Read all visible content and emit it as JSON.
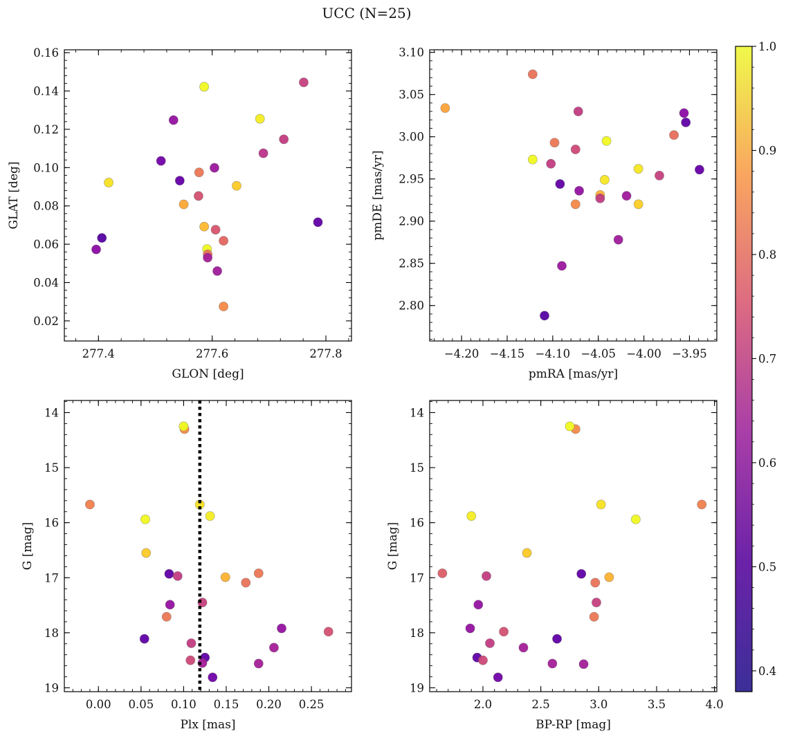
{
  "figure_title": "UCC (N=25)",
  "colorbar": {
    "ticks": [
      "0.4",
      "0.5",
      "0.6",
      "0.7",
      "0.8",
      "0.9",
      "1.0"
    ],
    "range": [
      0.38,
      1.0
    ],
    "colormap": "plasma"
  },
  "chart_data": [
    {
      "type": "scatter",
      "xlabel": "GLON [deg]",
      "ylabel": "GLAT [deg]",
      "xlim": [
        277.34,
        277.845
      ],
      "ylim": [
        0.0095,
        0.1615
      ],
      "xticks": [
        277.4,
        277.6,
        277.8
      ],
      "xtick_labels": [
        "277.4",
        "277.6",
        "277.8"
      ],
      "yticks": [
        0.02,
        0.04,
        0.06,
        0.08,
        0.1,
        0.12,
        0.14,
        0.16
      ],
      "ytick_labels": [
        "0.02",
        "0.04",
        "0.06",
        "0.08",
        "0.10",
        "0.12",
        "0.14",
        "0.16"
      ],
      "points": [
        {
          "x": 277.586,
          "y": 0.1422,
          "c": 1.0
        },
        {
          "x": 277.761,
          "y": 0.1445,
          "c": 0.63
        },
        {
          "x": 277.532,
          "y": 0.1248,
          "c": 0.52
        },
        {
          "x": 277.684,
          "y": 0.1255,
          "c": 0.98
        },
        {
          "x": 277.726,
          "y": 0.1148,
          "c": 0.62
        },
        {
          "x": 277.69,
          "y": 0.1075,
          "c": 0.6
        },
        {
          "x": 277.51,
          "y": 0.1035,
          "c": 0.45
        },
        {
          "x": 277.604,
          "y": 0.0999,
          "c": 0.53
        },
        {
          "x": 277.577,
          "y": 0.0975,
          "c": 0.76
        },
        {
          "x": 277.418,
          "y": 0.0922,
          "c": 0.96
        },
        {
          "x": 277.543,
          "y": 0.0932,
          "c": 0.43
        },
        {
          "x": 277.643,
          "y": 0.0905,
          "c": 0.92
        },
        {
          "x": 277.576,
          "y": 0.0852,
          "c": 0.67
        },
        {
          "x": 277.55,
          "y": 0.0808,
          "c": 0.86
        },
        {
          "x": 277.586,
          "y": 0.0692,
          "c": 0.89
        },
        {
          "x": 277.606,
          "y": 0.0676,
          "c": 0.68
        },
        {
          "x": 277.786,
          "y": 0.0715,
          "c": 0.42
        },
        {
          "x": 277.406,
          "y": 0.0633,
          "c": 0.4
        },
        {
          "x": 277.62,
          "y": 0.0618,
          "c": 0.72
        },
        {
          "x": 277.396,
          "y": 0.0573,
          "c": 0.5
        },
        {
          "x": 277.591,
          "y": 0.0575,
          "c": 1.0
        },
        {
          "x": 277.592,
          "y": 0.0547,
          "c": 0.75
        },
        {
          "x": 277.592,
          "y": 0.053,
          "c": 0.55
        },
        {
          "x": 277.609,
          "y": 0.046,
          "c": 0.54
        },
        {
          "x": 277.62,
          "y": 0.0275,
          "c": 0.8
        }
      ]
    },
    {
      "type": "scatter",
      "xlabel": "pmRA [mas/yr]",
      "ylabel": "pmDE [mas/yr]",
      "xlim": [
        -4.235,
        -3.92
      ],
      "ylim": [
        2.758,
        3.103
      ],
      "xticks": [
        -4.2,
        -4.15,
        -4.1,
        -4.05,
        -4.0,
        -3.95
      ],
      "xtick_labels": [
        "−4.20",
        "−4.15",
        "−4.10",
        "−4.05",
        "−4.00",
        "−3.95"
      ],
      "yticks": [
        2.8,
        2.85,
        2.9,
        2.95,
        3.0,
        3.05,
        3.1
      ],
      "ytick_labels": [
        "2.80",
        "2.85",
        "2.90",
        "2.95",
        "3.00",
        "3.05",
        "3.10"
      ],
      "points": [
        {
          "x": -4.122,
          "y": 3.074,
          "c": 0.75
        },
        {
          "x": -4.218,
          "y": 3.034,
          "c": 0.85
        },
        {
          "x": -4.072,
          "y": 3.03,
          "c": 0.62
        },
        {
          "x": -3.956,
          "y": 3.028,
          "c": 0.5
        },
        {
          "x": -3.954,
          "y": 3.017,
          "c": 0.42
        },
        {
          "x": -3.967,
          "y": 3.002,
          "c": 0.74
        },
        {
          "x": -4.041,
          "y": 2.995,
          "c": 1.0
        },
        {
          "x": -4.098,
          "y": 2.993,
          "c": 0.76
        },
        {
          "x": -4.075,
          "y": 2.985,
          "c": 0.65
        },
        {
          "x": -4.122,
          "y": 2.973,
          "c": 1.0
        },
        {
          "x": -4.102,
          "y": 2.968,
          "c": 0.62
        },
        {
          "x": -4.006,
          "y": 2.962,
          "c": 0.97
        },
        {
          "x": -3.939,
          "y": 2.961,
          "c": 0.43
        },
        {
          "x": -3.983,
          "y": 2.954,
          "c": 0.63
        },
        {
          "x": -4.043,
          "y": 2.949,
          "c": 0.97
        },
        {
          "x": -4.092,
          "y": 2.944,
          "c": 0.42
        },
        {
          "x": -4.071,
          "y": 2.936,
          "c": 0.52
        },
        {
          "x": -4.048,
          "y": 2.931,
          "c": 0.88
        },
        {
          "x": -4.019,
          "y": 2.93,
          "c": 0.54
        },
        {
          "x": -4.048,
          "y": 2.927,
          "c": 0.62
        },
        {
          "x": -4.075,
          "y": 2.92,
          "c": 0.8
        },
        {
          "x": -4.006,
          "y": 2.92,
          "c": 0.93
        },
        {
          "x": -4.028,
          "y": 2.878,
          "c": 0.54
        },
        {
          "x": -4.09,
          "y": 2.847,
          "c": 0.53
        },
        {
          "x": -4.109,
          "y": 2.788,
          "c": 0.4
        }
      ]
    },
    {
      "type": "scatter",
      "xlabel": "Plx [mas]",
      "ylabel": "G [mag]",
      "xlim": [
        -0.04,
        0.297
      ],
      "ylim": [
        19.07,
        13.78
      ],
      "y_inverted": true,
      "xticks": [
        0.0,
        0.05,
        0.1,
        0.15,
        0.2,
        0.25
      ],
      "xtick_labels": [
        "0.00",
        "0.05",
        "0.10",
        "0.15",
        "0.20",
        "0.25"
      ],
      "yticks": [
        14,
        15,
        16,
        17,
        18,
        19
      ],
      "ytick_labels": [
        "14",
        "15",
        "16",
        "17",
        "18",
        "19"
      ],
      "vline": {
        "x": 0.119,
        "style": "dotted"
      },
      "points": [
        {
          "x": 0.101,
          "y": 14.3,
          "c": 0.8
        },
        {
          "x": 0.1,
          "y": 14.25,
          "c": 1.0
        },
        {
          "x": -0.01,
          "y": 15.67,
          "c": 0.78
        },
        {
          "x": 0.119,
          "y": 15.67,
          "c": 0.96
        },
        {
          "x": 0.131,
          "y": 15.88,
          "c": 0.98
        },
        {
          "x": 0.055,
          "y": 15.94,
          "c": 1.0
        },
        {
          "x": 0.056,
          "y": 16.55,
          "c": 0.92
        },
        {
          "x": 0.083,
          "y": 16.93,
          "c": 0.42
        },
        {
          "x": 0.093,
          "y": 16.97,
          "c": 0.62
        },
        {
          "x": 0.149,
          "y": 16.99,
          "c": 0.88
        },
        {
          "x": 0.188,
          "y": 16.92,
          "c": 0.76
        },
        {
          "x": 0.173,
          "y": 17.09,
          "c": 0.75
        },
        {
          "x": 0.122,
          "y": 17.45,
          "c": 0.63
        },
        {
          "x": 0.084,
          "y": 17.49,
          "c": 0.52
        },
        {
          "x": 0.08,
          "y": 17.71,
          "c": 0.76
        },
        {
          "x": 0.215,
          "y": 17.92,
          "c": 0.52
        },
        {
          "x": 0.27,
          "y": 17.98,
          "c": 0.67
        },
        {
          "x": 0.054,
          "y": 18.11,
          "c": 0.42
        },
        {
          "x": 0.109,
          "y": 18.19,
          "c": 0.62
        },
        {
          "x": 0.206,
          "y": 18.27,
          "c": 0.55
        },
        {
          "x": 0.125,
          "y": 18.45,
          "c": 0.42
        },
        {
          "x": 0.108,
          "y": 18.5,
          "c": 0.65
        },
        {
          "x": 0.122,
          "y": 18.55,
          "c": 0.55
        },
        {
          "x": 0.188,
          "y": 18.56,
          "c": 0.55
        },
        {
          "x": 0.134,
          "y": 18.81,
          "c": 0.45
        }
      ]
    },
    {
      "type": "scatter",
      "xlabel": "BP-RP [mag]",
      "ylabel": "G [mag]",
      "xlim": [
        1.54,
        4.02
      ],
      "ylim": [
        19.07,
        13.78
      ],
      "y_inverted": true,
      "xticks": [
        2.0,
        2.5,
        3.0,
        3.5,
        4.0
      ],
      "xtick_labels": [
        "2.0",
        "2.5",
        "3.0",
        "3.5",
        "4.0"
      ],
      "yticks": [
        14,
        15,
        16,
        17,
        18,
        19
      ],
      "ytick_labels": [
        "14",
        "15",
        "16",
        "17",
        "18",
        "19"
      ],
      "points": [
        {
          "x": 2.8,
          "y": 14.3,
          "c": 0.8
        },
        {
          "x": 2.75,
          "y": 14.25,
          "c": 1.0
        },
        {
          "x": 3.89,
          "y": 15.67,
          "c": 0.78
        },
        {
          "x": 3.02,
          "y": 15.67,
          "c": 0.96
        },
        {
          "x": 1.9,
          "y": 15.88,
          "c": 0.98
        },
        {
          "x": 3.32,
          "y": 15.94,
          "c": 1.0
        },
        {
          "x": 2.38,
          "y": 16.55,
          "c": 0.92
        },
        {
          "x": 1.65,
          "y": 16.92,
          "c": 0.7
        },
        {
          "x": 2.85,
          "y": 16.93,
          "c": 0.42
        },
        {
          "x": 2.03,
          "y": 16.97,
          "c": 0.62
        },
        {
          "x": 3.09,
          "y": 16.99,
          "c": 0.88
        },
        {
          "x": 2.97,
          "y": 17.09,
          "c": 0.75
        },
        {
          "x": 2.98,
          "y": 17.45,
          "c": 0.63
        },
        {
          "x": 1.96,
          "y": 17.49,
          "c": 0.52
        },
        {
          "x": 2.96,
          "y": 17.71,
          "c": 0.76
        },
        {
          "x": 1.89,
          "y": 17.92,
          "c": 0.52
        },
        {
          "x": 2.18,
          "y": 17.98,
          "c": 0.67
        },
        {
          "x": 2.64,
          "y": 18.11,
          "c": 0.42
        },
        {
          "x": 2.06,
          "y": 18.19,
          "c": 0.62
        },
        {
          "x": 2.35,
          "y": 18.27,
          "c": 0.55
        },
        {
          "x": 1.95,
          "y": 18.45,
          "c": 0.42
        },
        {
          "x": 2.0,
          "y": 18.5,
          "c": 0.65
        },
        {
          "x": 2.6,
          "y": 18.56,
          "c": 0.55
        },
        {
          "x": 2.87,
          "y": 18.57,
          "c": 0.55
        },
        {
          "x": 2.13,
          "y": 18.81,
          "c": 0.45
        }
      ]
    }
  ]
}
